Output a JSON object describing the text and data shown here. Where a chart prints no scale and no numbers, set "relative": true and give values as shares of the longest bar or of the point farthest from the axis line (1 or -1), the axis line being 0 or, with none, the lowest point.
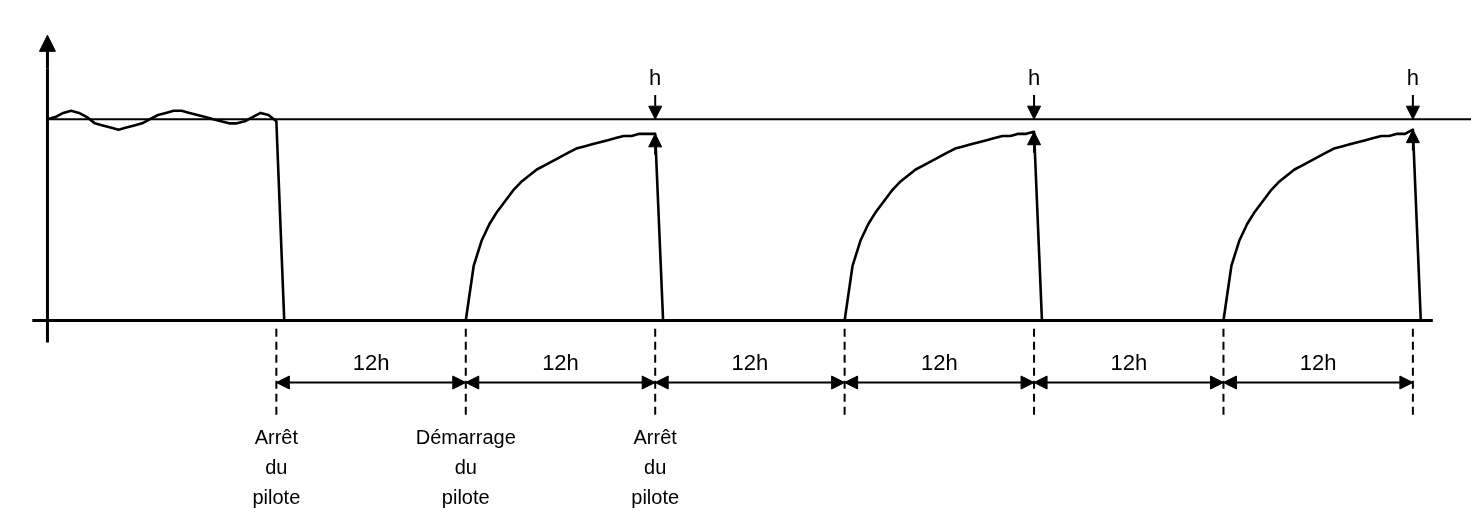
{
  "chart_data": {
    "type": "line",
    "relative": true,
    "categories": [
      null,
      null,
      null,
      null,
      null,
      null,
      null,
      null,
      null,
      null,
      null,
      null,
      null,
      null,
      null,
      null,
      null,
      null,
      null,
      null,
      null,
      null,
      null,
      null,
      null,
      null,
      null,
      null,
      null,
      null,
      null,
      null,
      null,
      null,
      null,
      null,
      null,
      null,
      null,
      null,
      null,
      null,
      null,
      null,
      null,
      null,
      null,
      null,
      null,
      null,
      null,
      null,
      null,
      null,
      null,
      null,
      null,
      null,
      null,
      null,
      null,
      null,
      null,
      null,
      null,
      null,
      null,
      null,
      null,
      null,
      null,
      null,
      null,
      null,
      null,
      null,
      null,
      null,
      null,
      null,
      null,
      null,
      null,
      null,
      null,
      null,
      null,
      null,
      null,
      null,
      null,
      null,
      null,
      null,
      null,
      null,
      null,
      null,
      null,
      null,
      null,
      null,
      null,
      null,
      null,
      null,
      null,
      null,
      null,
      null,
      null,
      null,
      null,
      null,
      null,
      null,
      null,
      null,
      null,
      null,
      null,
      null,
      null,
      null,
      null,
      null,
      null,
      null,
      null,
      null,
      null,
      null,
      null,
      null,
      null,
      null,
      null,
      null,
      null,
      null,
      null,
      null,
      null,
      null,
      null,
      null,
      null,
      null,
      null,
      null,
      null,
      null,
      null,
      null,
      null,
      null,
      null,
      null,
      null,
      null,
      null,
      null,
      null,
      null,
      null,
      null,
      null,
      null,
      null,
      null,
      null,
      null,
      null,
      null,
      null
    ],
    "series": [
      {
        "color": "#000000",
        "values": [
          0.96,
          0.97,
          0.99,
          1.0,
          0.99,
          0.97,
          0.94,
          0.93,
          0.92,
          0.91,
          0.92,
          0.93,
          0.94,
          0.96,
          0.98,
          0.99,
          1.0,
          1.0,
          0.99,
          0.98,
          0.97,
          0.96,
          0.95,
          0.94,
          0.94,
          0.95,
          0.97,
          0.99,
          0.98,
          0.95,
          0,
          0,
          0,
          0,
          0,
          0,
          0,
          0,
          0,
          0,
          0,
          0,
          0,
          0,
          0,
          0,
          0,
          0,
          0,
          0,
          0,
          0,
          0,
          0,
          0.26,
          0.38,
          0.46,
          0.52,
          0.57,
          0.62,
          0.66,
          0.69,
          0.72,
          0.74,
          0.76,
          0.78,
          0.8,
          0.82,
          0.83,
          0.84,
          0.85,
          0.86,
          0.87,
          0.88,
          0.88,
          0.89,
          0.89,
          0.89,
          0,
          0,
          0,
          0,
          0,
          0,
          0,
          0,
          0,
          0,
          0,
          0,
          0,
          0,
          0,
          0,
          0,
          0,
          0,
          0,
          0,
          0,
          0,
          0,
          0.26,
          0.38,
          0.46,
          0.52,
          0.57,
          0.62,
          0.66,
          0.69,
          0.72,
          0.74,
          0.76,
          0.78,
          0.8,
          0.82,
          0.83,
          0.84,
          0.85,
          0.86,
          0.87,
          0.88,
          0.88,
          0.89,
          0.89,
          0.9,
          0,
          0,
          0,
          0,
          0,
          0,
          0,
          0,
          0,
          0,
          0,
          0,
          0,
          0,
          0,
          0,
          0,
          0,
          0,
          0,
          0,
          0,
          0,
          0,
          0.26,
          0.38,
          0.46,
          0.52,
          0.57,
          0.62,
          0.66,
          0.69,
          0.72,
          0.74,
          0.76,
          0.78,
          0.8,
          0.82,
          0.83,
          0.84,
          0.85,
          0.86,
          0.87,
          0.88,
          0.88,
          0.89,
          0.89,
          0.91,
          0
        ]
      }
    ],
    "tick_labels": false,
    "line_style": "solid",
    "ref_lines": [
      {
        "axis": "y",
        "value": 0.96,
        "line_style": "solid",
        "color": "#000000"
      }
    ],
    "annotations": [
      "h",
      "h",
      "h",
      "12h",
      "12h",
      "12h",
      "12h",
      "12h",
      "12h",
      "Arrêt du pilote",
      "Démarrage du pilote",
      "Arrêt du pilote"
    ]
  }
}
